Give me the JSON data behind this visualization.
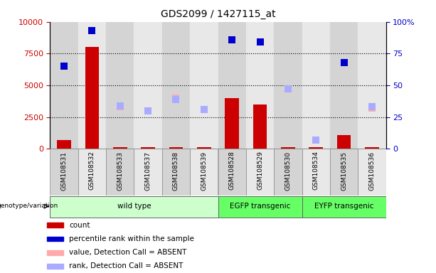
{
  "title": "GDS2099 / 1427115_at",
  "samples": [
    "GSM108531",
    "GSM108532",
    "GSM108533",
    "GSM108537",
    "GSM108538",
    "GSM108539",
    "GSM108528",
    "GSM108529",
    "GSM108530",
    "GSM108534",
    "GSM108535",
    "GSM108536"
  ],
  "count_values": [
    700,
    8000,
    100,
    100,
    100,
    100,
    4000,
    3500,
    100,
    100,
    1100,
    100
  ],
  "percentile_values": [
    6500,
    9300,
    null,
    null,
    null,
    null,
    8600,
    8400,
    null,
    null,
    6800,
    null
  ],
  "absent_value_values": [
    null,
    null,
    3300,
    3000,
    4000,
    3100,
    null,
    null,
    null,
    700,
    null,
    3200
  ],
  "absent_rank_values": [
    null,
    null,
    3400,
    3000,
    3900,
    3100,
    null,
    null,
    4700,
    700,
    null,
    3300
  ],
  "groups": [
    {
      "label": "wild type",
      "start": 0,
      "end": 6,
      "color": "#ccffcc"
    },
    {
      "label": "EGFP transgenic",
      "start": 6,
      "end": 9,
      "color": "#66ff66"
    },
    {
      "label": "EYFP transgenic",
      "start": 9,
      "end": 12,
      "color": "#66ff66"
    }
  ],
  "ylim_left": [
    0,
    10000
  ],
  "ylim_right": [
    0,
    100
  ],
  "yticks_left": [
    0,
    2500,
    5000,
    7500,
    10000
  ],
  "yticks_right": [
    0,
    25,
    50,
    75,
    100
  ],
  "bar_color": "#cc0000",
  "percentile_color": "#0000cc",
  "absent_value_color": "#ffaaaa",
  "absent_rank_color": "#aaaaff",
  "col_bg_even": "#d4d4d4",
  "col_bg_odd": "#e8e8e8",
  "left_label_color": "#cc0000",
  "right_label_color": "#0000cc"
}
